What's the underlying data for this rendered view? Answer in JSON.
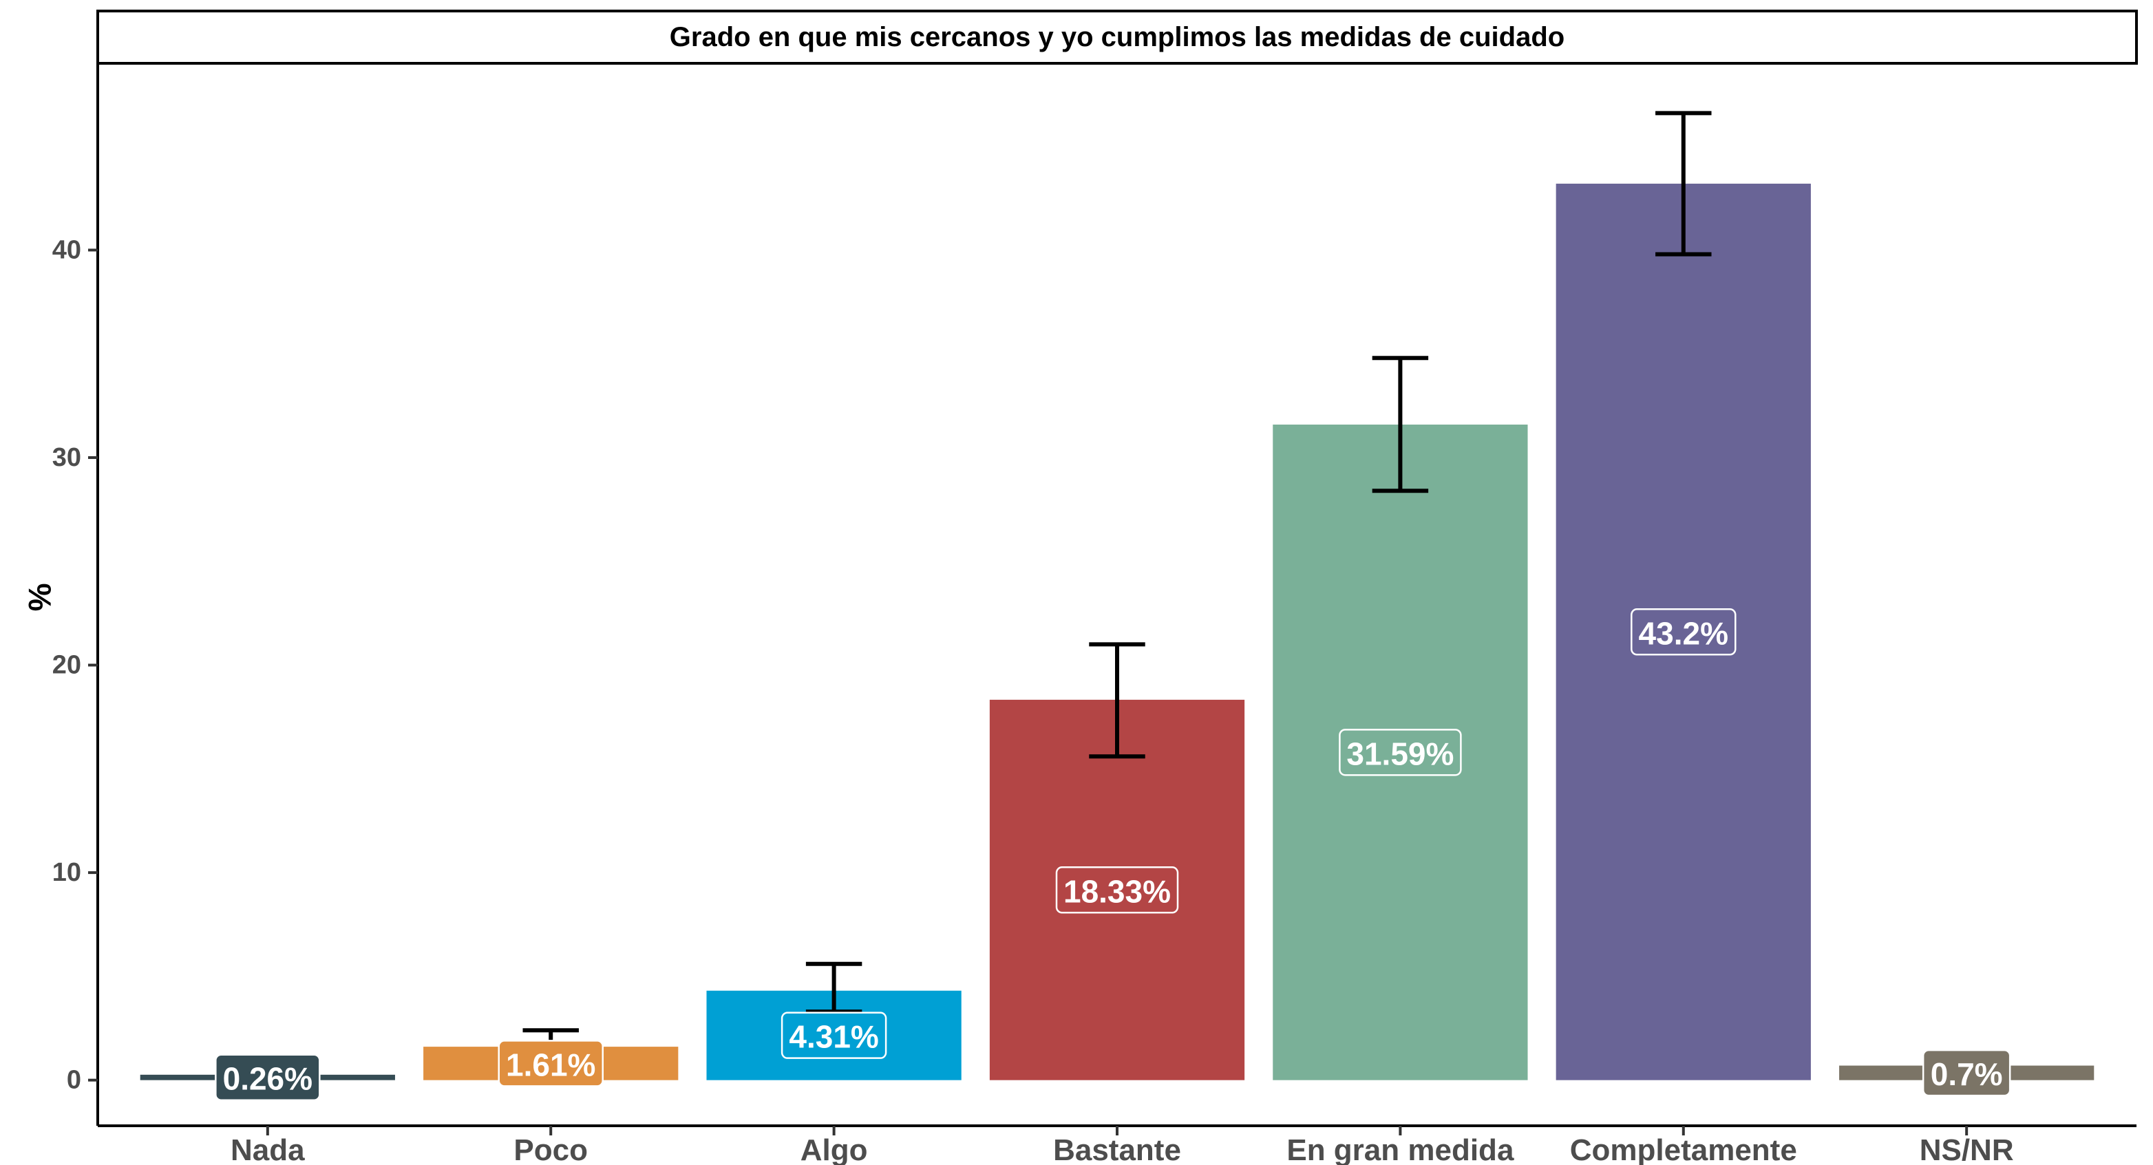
{
  "chart_data": {
    "type": "bar",
    "title": "Grado en que mis cercanos y yo cumplimos las medidas de cuidado",
    "xlabel": "",
    "ylabel": "%",
    "ylim": [
      -2.2,
      49
    ],
    "yticks": [
      0,
      10,
      20,
      30,
      40
    ],
    "categories": [
      "Nada",
      "Poco",
      "Algo",
      "Bastante",
      "En gran medida",
      "Completamente",
      "NS/NR"
    ],
    "values": [
      0.26,
      1.61,
      4.31,
      18.33,
      31.59,
      43.2,
      0.7
    ],
    "labels": [
      "0.26%",
      "1.61%",
      "4.31%",
      "18.33%",
      "31.59%",
      "43.2%",
      "0.7%"
    ],
    "error_low": [
      null,
      1.2,
      3.3,
      15.6,
      28.4,
      39.8,
      null
    ],
    "error_high": [
      null,
      2.4,
      5.6,
      21.0,
      34.8,
      46.6,
      null
    ],
    "colors": [
      "#354c54",
      "#e08f3f",
      "#00a0d4",
      "#b34545",
      "#7ab098",
      "#696496",
      "#7b7466"
    ],
    "grid": false,
    "legend": "none"
  }
}
